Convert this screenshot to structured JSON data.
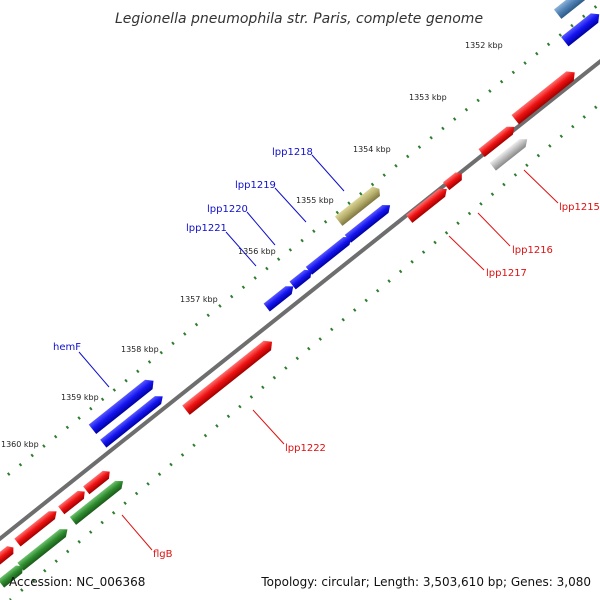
{
  "title": "Legionella pneumophila str. Paris, complete genome",
  "footer": {
    "accession": "Accession: NC_006368",
    "topology": "Topology: circular; Length: 3,503,610 bp; Genes: 3,080"
  },
  "scale_labels": [
    "1352 kbp",
    "1353 kbp",
    "1354 kbp",
    "1355 kbp",
    "1356 kbp",
    "1357 kbp",
    "1358 kbp",
    "1359 kbp",
    "1360 kbp"
  ],
  "gene_labels": {
    "lpp1218": "lpp1218",
    "lpp1219": "lpp1219",
    "lpp1220": "lpp1220",
    "lpp1221": "lpp1221",
    "hemF": "hemF",
    "lpp1215": "lpp1215",
    "lpp1216": "lpp1216",
    "lpp1217": "lpp1217",
    "lpp1222": "lpp1222",
    "flgB": "flgB"
  },
  "colors": {
    "forward_gene": "#1010ee",
    "reverse_gene": "#ee1111",
    "rna_gene": "#2e8b2e",
    "pseudo_gene": "#bbbbbb",
    "other_gene": "#b5ad6a",
    "edge_gene": "#4f82b5",
    "backbone": "#777777",
    "tick": "#2e7d2e"
  }
}
